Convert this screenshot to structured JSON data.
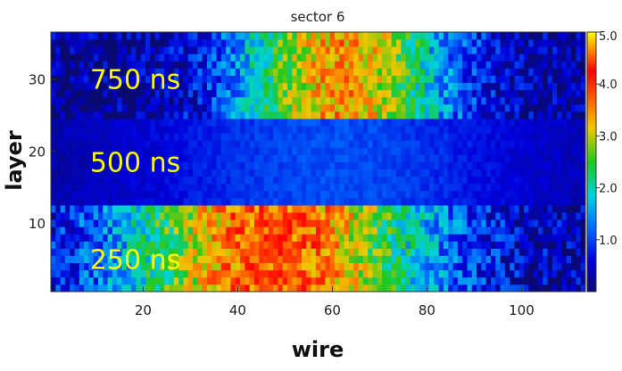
{
  "chart_data": {
    "type": "heatmap",
    "title": "sector 6",
    "xlabel": "wire",
    "ylabel": "layer",
    "xlim": [
      1,
      113
    ],
    "ylim": [
      1,
      36
    ],
    "x_ticks": [
      20,
      40,
      60,
      80,
      100
    ],
    "y_ticks": [
      10,
      20,
      30
    ],
    "colorbar": {
      "range": [
        0,
        5.0
      ],
      "ticks": [
        "1.0",
        "2.0",
        "3.0",
        "4.0",
        "5.0"
      ]
    },
    "annotations": [
      {
        "text": "750 ns",
        "wire": 5,
        "layer": 30
      },
      {
        "text": "500 ns",
        "wire": 5,
        "layer": 18.5
      },
      {
        "text": "250 ns",
        "wire": 5,
        "layer": 5
      }
    ],
    "annotation_color": "#ffff00",
    "bands": [
      {
        "layers": [
          1,
          12
        ],
        "peak_value": 3.6,
        "peak_wire": 48,
        "spread": 33
      },
      {
        "layers": [
          13,
          24
        ],
        "peak_value": 0.8,
        "peak_wire": 60,
        "spread": 40
      },
      {
        "layers": [
          25,
          36
        ],
        "peak_value": 3.2,
        "peak_wire": 62,
        "spread": 22
      }
    ]
  }
}
